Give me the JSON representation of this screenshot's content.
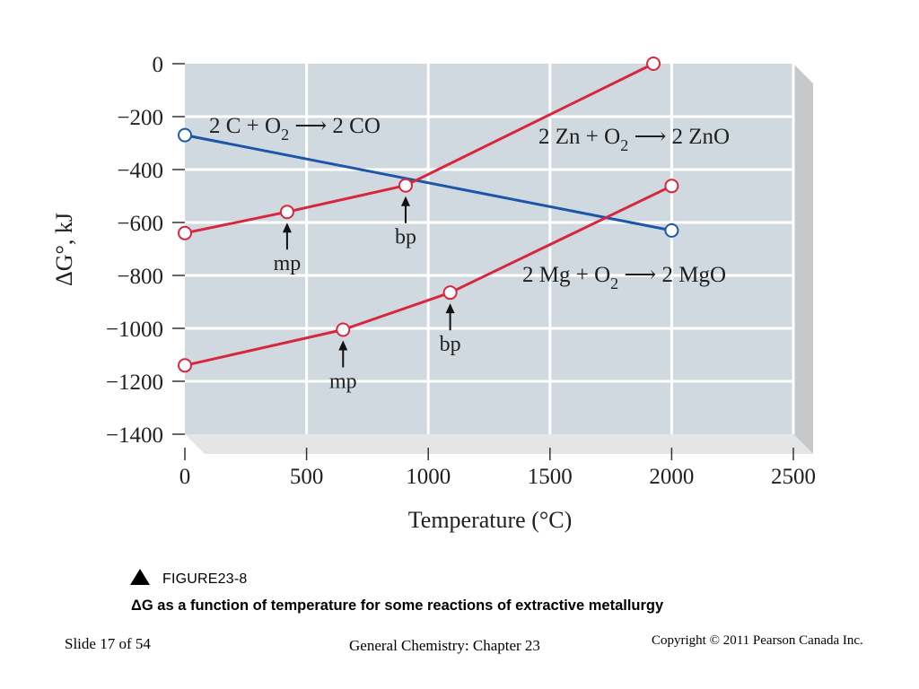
{
  "chart_data": {
    "type": "line",
    "xlabel": "Temperature (°C)",
    "ylabel": "ΔG°, kJ",
    "xlim": [
      0,
      2500
    ],
    "ylim": [
      -1400,
      0
    ],
    "xticks": [
      0,
      500,
      1000,
      1500,
      2000,
      2500
    ],
    "yticks": [
      0,
      -200,
      -400,
      -600,
      -800,
      -1000,
      -1200,
      -1400
    ],
    "xtick_labels": [
      "0",
      "500",
      "1000",
      "1500",
      "2000",
      "2500"
    ],
    "ytick_labels": [
      "0",
      "−200",
      "−400",
      "−600",
      "−800",
      "−1000",
      "−1200",
      "−1400"
    ],
    "grid": true,
    "series": [
      {
        "name": "2 C + O2 → 2 CO",
        "color": "#1c56a8",
        "points": [
          [
            0,
            -270
          ],
          [
            2000,
            -630
          ]
        ]
      },
      {
        "name": "2 Zn + O2 → 2 ZnO",
        "color": "#d8263d",
        "points": [
          [
            0,
            -640
          ],
          [
            420,
            -560
          ],
          [
            907,
            -460
          ],
          [
            1925,
            0
          ]
        ]
      },
      {
        "name": "2 Mg + O2 → 2 MgO",
        "color": "#d8263d",
        "points": [
          [
            0,
            -1140
          ],
          [
            650,
            -1005
          ],
          [
            1090,
            -865
          ],
          [
            2000,
            -462
          ]
        ]
      }
    ],
    "annotations": [
      {
        "text": "mp",
        "x": 420,
        "y": -560,
        "series": "2 Zn + O2 → 2 ZnO"
      },
      {
        "text": "bp",
        "x": 907,
        "y": -460,
        "series": "2 Zn + O2 → 2 ZnO"
      },
      {
        "text": "mp",
        "x": 650,
        "y": -1005,
        "series": "2 Mg + O2 → 2 MgO"
      },
      {
        "text": "bp",
        "x": 1090,
        "y": -865,
        "series": "2 Mg + O2 → 2 MgO"
      }
    ]
  },
  "reaction_labels": {
    "co": {
      "pre": "2 C + O",
      "sub": "2",
      "post": " ⟶ 2 CO"
    },
    "zno": {
      "pre": "2 Zn + O",
      "sub": "2",
      "post": " ⟶ 2 ZnO"
    },
    "mgo": {
      "pre": "2 Mg + O",
      "sub": "2",
      "post": " ⟶ 2 MgO"
    }
  },
  "figure": {
    "marker_icon": "triangle-up-icon",
    "label": "FIGURE23-8",
    "description": "ΔG as a function of temperature for some reactions of extractive metallurgy"
  },
  "footer": {
    "slide": "Slide 17 of 54",
    "course": "General Chemistry: Chapter 23",
    "copyright": "Copyright © 2011 Pearson Canada Inc."
  },
  "colors": {
    "plot_bg": "#cfd9df",
    "grid": "#ffffff",
    "side_panel": "#c7c8c9",
    "marker_fill": "#ffffff"
  }
}
